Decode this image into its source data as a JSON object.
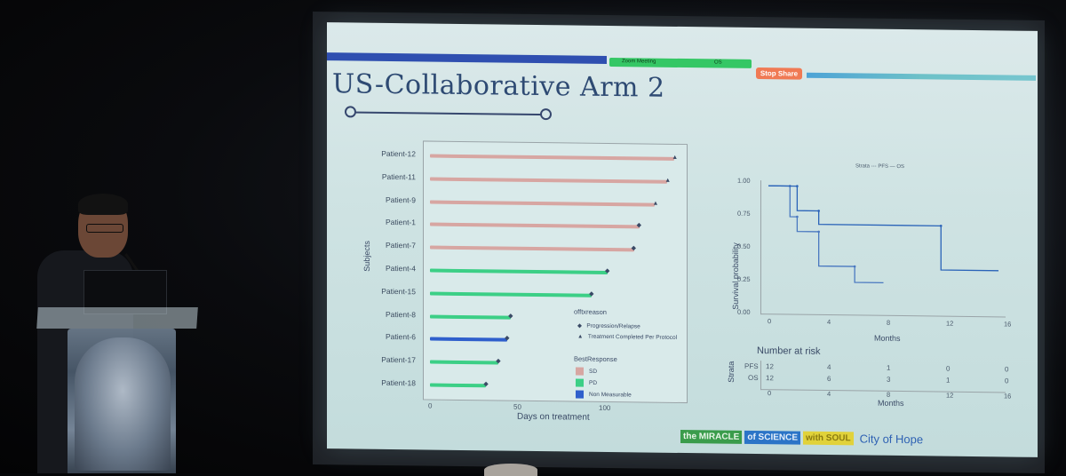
{
  "slide": {
    "title": "US-Collaborative Arm 2",
    "zoom_bar_left": "Zoom Meeting",
    "zoom_bar_right": "OS",
    "stop_share": "Stop Share"
  },
  "swimmer": {
    "ylabel": "Subjects",
    "xlabel": "Days on treatment",
    "xticks": [
      "0",
      "50",
      "100"
    ],
    "patients": [
      {
        "label": "Patient-12",
        "days": 139,
        "response": "SD",
        "marker": "triangle"
      },
      {
        "label": "Patient-11",
        "days": 135,
        "response": "SD",
        "marker": "triangle"
      },
      {
        "label": "Patient-9",
        "days": 128,
        "response": "SD",
        "marker": "triangle"
      },
      {
        "label": "Patient-1",
        "days": 119,
        "response": "SD",
        "marker": "diamond"
      },
      {
        "label": "Patient-7",
        "days": 116,
        "response": "SD",
        "marker": "diamond"
      },
      {
        "label": "Patient-4",
        "days": 101,
        "response": "PD",
        "marker": "diamond"
      },
      {
        "label": "Patient-15",
        "days": 92,
        "response": "PD",
        "marker": "diamond"
      },
      {
        "label": "Patient-8",
        "days": 46,
        "response": "PD",
        "marker": "diamond"
      },
      {
        "label": "Patient-6",
        "days": 44,
        "response": "Non Measurable",
        "marker": "diamond"
      },
      {
        "label": "Patient-17",
        "days": 39,
        "response": "PD",
        "marker": "diamond"
      },
      {
        "label": "Patient-18",
        "days": 32,
        "response": "PD",
        "marker": "diamond"
      }
    ],
    "legend_reason_title": "offtxreason",
    "legend_reason": [
      "Progression/Relapse",
      "Treatment Completed Per Protocol"
    ],
    "legend_response_title": "BestResponse",
    "legend_response": [
      {
        "name": "SD",
        "color": "#d7a6a2"
      },
      {
        "name": "PD",
        "color": "#3ccf86"
      },
      {
        "name": "Non Measurable",
        "color": "#2f5fcc"
      }
    ]
  },
  "km": {
    "strata_legend": "Strata  ---  PFS  —  OS",
    "ylabel": "Survival probability",
    "xlabel": "Months",
    "yticks": [
      "1.00",
      "0.75",
      "0.50",
      "0.25",
      "0.00"
    ],
    "xticks": [
      "0",
      "4",
      "8",
      "12",
      "16"
    ],
    "risk_title": "Number at risk",
    "risk_ylabel": "Strata",
    "risk_rows": [
      {
        "name": "PFS",
        "values": [
          "12",
          "4",
          "1",
          "0",
          "0"
        ]
      },
      {
        "name": "OS",
        "values": [
          "12",
          "6",
          "3",
          "1",
          "0"
        ]
      }
    ],
    "risk_xlabel": "Months",
    "risk_xticks": [
      "0",
      "4",
      "8",
      "12",
      "16"
    ]
  },
  "chart_data": [
    {
      "type": "bar",
      "orientation": "horizontal",
      "xlabel": "Days on treatment",
      "ylabel": "Subjects",
      "categories": [
        "Patient-12",
        "Patient-11",
        "Patient-9",
        "Patient-1",
        "Patient-7",
        "Patient-4",
        "Patient-15",
        "Patient-8",
        "Patient-6",
        "Patient-17",
        "Patient-18"
      ],
      "values": [
        139,
        135,
        128,
        119,
        116,
        101,
        92,
        46,
        44,
        39,
        32
      ],
      "xlim": [
        0,
        150
      ]
    },
    {
      "type": "line",
      "xlabel": "Months",
      "ylabel": "Survival probability",
      "xlim": [
        0,
        16
      ],
      "ylim": [
        0,
        1
      ],
      "series": [
        {
          "name": "PFS",
          "x": [
            0,
            1.5,
            1.5,
            2,
            2,
            3.5,
            3.5,
            6,
            6,
            8
          ],
          "y": [
            1.0,
            1.0,
            0.75,
            0.75,
            0.63,
            0.63,
            0.35,
            0.35,
            0.22,
            0.22
          ]
        },
        {
          "name": "OS",
          "x": [
            0,
            2,
            2,
            3.5,
            3.5,
            12,
            12,
            16
          ],
          "y": [
            1.0,
            1.0,
            0.8,
            0.8,
            0.69,
            0.69,
            0.33,
            0.33
          ]
        }
      ]
    }
  ],
  "logos": {
    "l1": "the MIRACLE",
    "l2": "of SCIENCE",
    "l3": "with SOUL",
    "l4": "City of Hope"
  }
}
